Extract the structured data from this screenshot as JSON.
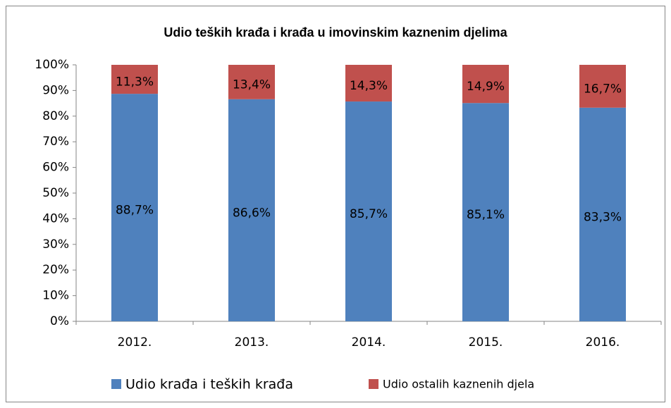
{
  "chart_data": {
    "type": "stacked_bar",
    "title": "Udio teških  krađa i krađa u imovinskim  kaznenim djelima",
    "categories": [
      "2012.",
      "2013.",
      "2014.",
      "2015.",
      "2016."
    ],
    "series": [
      {
        "name": "Udio krađa i teških krađa",
        "color": "#4f81bd",
        "values": [
          88.7,
          86.6,
          85.7,
          85.1,
          83.3
        ],
        "value_labels": [
          "88,7%",
          "86,6%",
          "85,7%",
          "85,1%",
          "83,3%"
        ]
      },
      {
        "name": "Udio ostalih kaznenih djela",
        "color": "#c0504d",
        "values": [
          11.3,
          13.4,
          14.3,
          14.9,
          16.7
        ],
        "value_labels": [
          "11,3%",
          "13,4%",
          "14,3%",
          "14,9%",
          "16,7%"
        ]
      }
    ],
    "ylim": [
      0,
      100
    ],
    "yticks": [
      {
        "value": 0,
        "label": "0%"
      },
      {
        "value": 10,
        "label": "10%"
      },
      {
        "value": 20,
        "label": "20%"
      },
      {
        "value": 30,
        "label": "30%"
      },
      {
        "value": 40,
        "label": "40%"
      },
      {
        "value": 50,
        "label": "50%"
      },
      {
        "value": 60,
        "label": "60%"
      },
      {
        "value": 70,
        "label": "70%"
      },
      {
        "value": 80,
        "label": "80%"
      },
      {
        "value": 90,
        "label": "90%"
      },
      {
        "value": 100,
        "label": "100%"
      }
    ],
    "grid": false,
    "legend": "bottom"
  }
}
